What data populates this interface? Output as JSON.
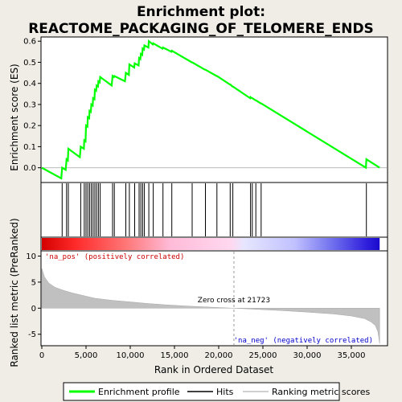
{
  "chart_data": {
    "type": "line",
    "title_line1": "Enrichment plot:",
    "title_line2": "REACTOME_PACKAGING_OF_TELOMERE_ENDS",
    "es_panel": {
      "ylabel": "Enrichment score (ES)",
      "ylim": [
        -0.07,
        0.62
      ],
      "yticks": [
        0.0,
        0.1,
        0.2,
        0.3,
        0.4,
        0.5,
        0.6
      ],
      "ytick_labels": [
        "0.0",
        "0.1",
        "0.2",
        "0.3",
        "0.4",
        "0.5",
        "0.6"
      ],
      "line_color": "#00ff00"
    },
    "rank_panel": {
      "ylabel": "Ranked list metric (PreRanked)",
      "ylim": [
        -7.2,
        11
      ],
      "yticks": [
        -5,
        0,
        5,
        10
      ],
      "ytick_labels": [
        "-5",
        "0",
        "5",
        "10"
      ],
      "xlabel": "Rank in Ordered Dataset",
      "pos_label": "'na_pos' (positively correlated)",
      "neg_label": "'na_neg' (negatively correlated)",
      "zero_cross_label": "Zero cross at 21723",
      "zero_cross": 21723,
      "fill_color": "#c0c0c0"
    },
    "xlim": [
      0,
      39000
    ],
    "xticks": [
      0,
      5000,
      10000,
      15000,
      20000,
      25000,
      30000,
      35000
    ],
    "xtick_labels": [
      "0",
      "5,000",
      "10,000",
      "15,000",
      "20,000",
      "25,000",
      "30,000",
      "35,000"
    ],
    "n_genes": 38200,
    "hits": [
      2300,
      2800,
      3000,
      4400,
      4800,
      5000,
      5200,
      5400,
      5600,
      5800,
      6000,
      6200,
      6400,
      6600,
      8000,
      8200,
      9500,
      9900,
      10500,
      11000,
      11200,
      11400,
      11600,
      12100,
      12600,
      13700,
      14700,
      17000,
      18500,
      19800,
      21300,
      21600,
      23600,
      23800,
      24200,
      24800,
      36700
    ],
    "es_curve": {
      "x": [
        0,
        2200,
        2300,
        2700,
        2800,
        2950,
        3000,
        4300,
        4400,
        4750,
        4800,
        4950,
        5000,
        5150,
        5200,
        5350,
        5400,
        5550,
        5600,
        5750,
        5800,
        5950,
        6000,
        6150,
        6200,
        6350,
        6400,
        6550,
        6600,
        7900,
        8000,
        8150,
        8200,
        9400,
        9500,
        9850,
        9900,
        10450,
        10500,
        10950,
        11000,
        11150,
        11200,
        11350,
        11400,
        11550,
        11600,
        12050,
        12100,
        12550,
        12600,
        13650,
        13700,
        14650,
        14700,
        16950,
        17000,
        18450,
        18500,
        19750,
        19800,
        21250,
        21300,
        21550,
        21600,
        23550,
        23600,
        23750,
        23800,
        24150,
        24200,
        24750,
        24800,
        36650,
        36700,
        38200
      ],
      "y": [
        0.0,
        -0.05,
        0.0,
        -0.01,
        0.04,
        0.035,
        0.09,
        0.05,
        0.1,
        0.09,
        0.13,
        0.125,
        0.2,
        0.195,
        0.24,
        0.235,
        0.27,
        0.265,
        0.3,
        0.295,
        0.33,
        0.325,
        0.37,
        0.365,
        0.39,
        0.385,
        0.41,
        0.405,
        0.43,
        0.39,
        0.435,
        0.43,
        0.435,
        0.41,
        0.45,
        0.44,
        0.49,
        0.475,
        0.495,
        0.485,
        0.52,
        0.515,
        0.54,
        0.535,
        0.565,
        0.56,
        0.58,
        0.57,
        0.6,
        0.585,
        0.59,
        0.565,
        0.57,
        0.55,
        0.555,
        0.5,
        0.5,
        0.465,
        0.465,
        0.435,
        0.435,
        0.395,
        0.395,
        0.385,
        0.385,
        0.33,
        0.335,
        0.33,
        0.33,
        0.32,
        0.32,
        0.305,
        0.305,
        0.0,
        0.04,
        0.0
      ]
    },
    "ranked_metric": {
      "x": [
        0,
        300,
        800,
        1500,
        2500,
        3500,
        4500,
        6000,
        8000,
        10000,
        12000,
        14000,
        16000,
        18000,
        20000,
        21723,
        24000,
        27000,
        30000,
        33000,
        35000,
        36500,
        37200,
        37700,
        38000,
        38200
      ],
      "y": [
        7.6,
        6.0,
        4.8,
        4.0,
        3.4,
        2.9,
        2.5,
        1.9,
        1.5,
        1.2,
        0.9,
        0.65,
        0.45,
        0.28,
        0.12,
        0.0,
        -0.2,
        -0.45,
        -0.75,
        -1.1,
        -1.5,
        -2.0,
        -2.6,
        -3.3,
        -4.5,
        -6.8
      ]
    },
    "legend": [
      "Enrichment profile",
      "Hits",
      "Ranking metric scores"
    ]
  }
}
